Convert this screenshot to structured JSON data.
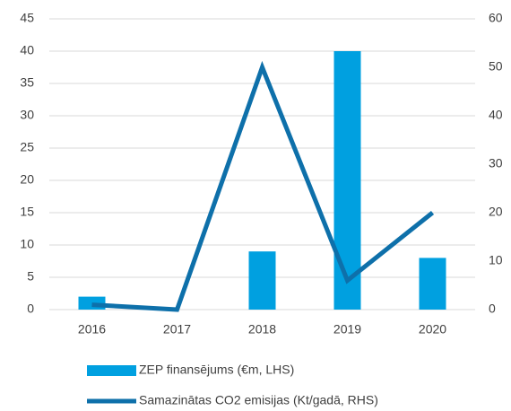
{
  "chart_data": {
    "type": "bar_line",
    "categories": [
      "2016",
      "2017",
      "2018",
      "2019",
      "2020"
    ],
    "series": [
      {
        "name": "ZEP finansējums (€m, LHS)",
        "color": "#00a0e0",
        "type": "bar",
        "values": [
          2,
          0,
          9,
          40,
          8
        ]
      },
      {
        "name": "Samazinātas CO2 emisijas (Kt/gadā, RHS)",
        "color": "#0e70aa",
        "type": "line",
        "axis": "y2",
        "values": [
          1,
          0,
          50,
          6,
          20
        ]
      }
    ],
    "ylim": [
      0,
      45
    ],
    "yticks": [
      0,
      5,
      10,
      15,
      20,
      25,
      30,
      35,
      40,
      45
    ],
    "y2lim": [
      0,
      60
    ],
    "y2ticks": [
      0,
      10,
      20,
      30,
      40,
      50,
      60
    ],
    "grid": true,
    "legend": "bottom"
  }
}
